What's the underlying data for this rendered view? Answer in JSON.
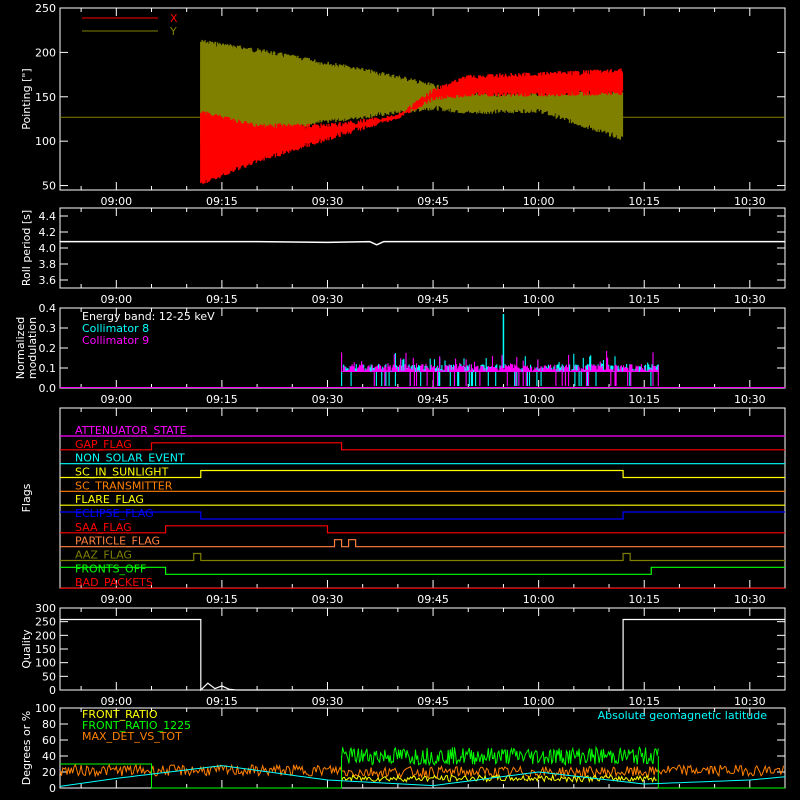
{
  "time_ticks": [
    "09:00",
    "09:15",
    "09:30",
    "09:45",
    "10:00",
    "10:15",
    "10:30"
  ],
  "chart_data": [
    {
      "type": "line",
      "ylabel": "Pointing [\"]",
      "yticks": [
        "50",
        "100",
        "150",
        "200",
        "250"
      ],
      "ylim": [
        45,
        250
      ],
      "xlim": [
        "08:52",
        "10:35"
      ],
      "legend": [
        {
          "name": "X",
          "color": "#ff0000"
        },
        {
          "name": "Y",
          "color": "#808000"
        }
      ],
      "series": [
        {
          "name": "X",
          "color": "#ff0000",
          "baseline": 127,
          "active_from": "09:12",
          "active_to": "10:12",
          "envelope_x": [
            "09:12",
            "09:20",
            "09:30",
            "09:40",
            "09:45",
            "09:50",
            "10:00",
            "10:12"
          ],
          "envelope_low": [
            50,
            75,
            100,
            125,
            145,
            150,
            150,
            152
          ],
          "envelope_high": [
            135,
            120,
            120,
            130,
            160,
            175,
            178,
            182
          ]
        },
        {
          "name": "Y",
          "color": "#808000",
          "baseline": 127,
          "active_from": "09:12",
          "active_to": "10:12",
          "envelope_x": [
            "09:12",
            "09:20",
            "09:30",
            "09:40",
            "09:45",
            "09:50",
            "10:00",
            "10:12"
          ],
          "envelope_low": [
            95,
            105,
            120,
            130,
            135,
            130,
            132,
            100
          ],
          "envelope_high": [
            215,
            205,
            190,
            175,
            165,
            155,
            155,
            160
          ]
        }
      ]
    },
    {
      "type": "line",
      "ylabel": "Roll period [s]",
      "yticks": [
        "3.6",
        "3.8",
        "4.0",
        "4.2",
        "4.4"
      ],
      "ylim": [
        3.5,
        4.5
      ],
      "series": [
        {
          "name": "roll",
          "color": "#ffffff",
          "x": [
            "08:52",
            "09:20",
            "09:30",
            "09:36",
            "09:37",
            "09:38",
            "09:45",
            "10:00",
            "10:35"
          ],
          "y": [
            4.08,
            4.08,
            4.07,
            4.08,
            4.04,
            4.08,
            4.08,
            4.08,
            4.08
          ]
        }
      ]
    },
    {
      "type": "bar",
      "ylabel": "Normalized modulation",
      "yticks": [
        "0.0",
        "0.1",
        "0.2",
        "0.3",
        "0.4"
      ],
      "ylim": [
        0,
        0.4
      ],
      "legend": [
        {
          "name": "Energy band: 12-25 keV",
          "color": "#ffffff"
        },
        {
          "name": "Collimator 8",
          "color": "#00ffff"
        },
        {
          "name": "Collimator 9",
          "color": "#ff00ff"
        }
      ],
      "active_from": "09:32",
      "active_to": "10:17",
      "typical": 0.1,
      "spike": {
        "x": "09:55",
        "y": 0.37
      }
    },
    {
      "type": "line",
      "ylabel": "Flags",
      "flags": [
        {
          "name": "ATTENUATOR_STATE",
          "color": "#ff00ff",
          "steps": [
            [
              "08:52",
              0
            ]
          ]
        },
        {
          "name": "GAP_FLAG",
          "color": "#ff0000",
          "steps": [
            [
              "08:52",
              0
            ],
            [
              "09:05",
              1
            ],
            [
              "09:32",
              0
            ]
          ]
        },
        {
          "name": "NON_SOLAR_EVENT",
          "color": "#00ffff",
          "steps": [
            [
              "08:52",
              0
            ]
          ]
        },
        {
          "name": "SC_IN_SUNLIGHT",
          "color": "#ffff00",
          "steps": [
            [
              "08:52",
              0
            ],
            [
              "09:12",
              1
            ],
            [
              "10:12",
              0
            ]
          ]
        },
        {
          "name": "SC_TRANSMITTER",
          "color": "#ff8000",
          "steps": [
            [
              "08:52",
              0
            ]
          ]
        },
        {
          "name": "FLARE_FLAG",
          "color": "#ffff00",
          "steps": [
            [
              "08:52",
              0
            ]
          ]
        },
        {
          "name": "ECLIPSE_FLAG",
          "color": "#0000ff",
          "steps": [
            [
              "08:52",
              1
            ],
            [
              "09:12",
              0
            ],
            [
              "10:12",
              1
            ]
          ]
        },
        {
          "name": "SAA_FLAG",
          "color": "#ff0000",
          "steps": [
            [
              "08:52",
              0
            ],
            [
              "09:07",
              1
            ],
            [
              "09:30",
              0
            ]
          ]
        },
        {
          "name": "PARTICLE_FLAG",
          "color": "#ff8040",
          "steps": [
            [
              "08:52",
              0
            ],
            [
              "09:31",
              1
            ],
            [
              "09:32",
              0
            ],
            [
              "09:33",
              1
            ],
            [
              "09:34",
              0
            ]
          ]
        },
        {
          "name": "AAZ_FLAG",
          "color": "#808000",
          "steps": [
            [
              "08:52",
              0
            ],
            [
              "09:11",
              1
            ],
            [
              "09:12",
              0
            ],
            [
              "10:12",
              1
            ],
            [
              "10:13",
              0
            ]
          ]
        },
        {
          "name": "FRONTS_OFF",
          "color": "#00ff00",
          "steps": [
            [
              "08:52",
              1
            ],
            [
              "09:07",
              0
            ],
            [
              "10:16",
              1
            ]
          ]
        },
        {
          "name": "BAD_PACKETS",
          "color": "#ff0000",
          "steps": [
            [
              "08:52",
              0
            ]
          ]
        }
      ]
    },
    {
      "type": "line",
      "ylabel": "Quality",
      "yticks": [
        "0",
        "50",
        "100",
        "150",
        "200",
        "250",
        "300"
      ],
      "ylim": [
        0,
        300
      ],
      "series": [
        {
          "name": "quality",
          "color": "#ffffff",
          "x": [
            "08:52",
            "09:12",
            "09:12",
            "09:13",
            "09:14",
            "09:15",
            "09:16",
            "09:17",
            "10:12",
            "10:12",
            "10:35"
          ],
          "y": [
            258,
            258,
            0,
            25,
            5,
            15,
            3,
            0,
            0,
            258,
            258
          ]
        }
      ]
    },
    {
      "type": "line",
      "ylabel": "Degrees or %",
      "yticks": [
        "0",
        "20",
        "40",
        "60",
        "80",
        "100"
      ],
      "ylim": [
        0,
        100
      ],
      "legend": [
        {
          "name": "FRONT_RATIO",
          "color": "#ffff00"
        },
        {
          "name": "FRONT_RATIO_1225",
          "color": "#00ff00"
        },
        {
          "name": "MAX_DET_VS_TOT",
          "color": "#ff8000"
        }
      ],
      "annotation": {
        "text": "Absolute geomagnetic latitude",
        "color": "#00ffff"
      },
      "latitude": {
        "x": [
          "08:52",
          "09:00",
          "09:15",
          "09:30",
          "09:45",
          "10:00",
          "10:15",
          "10:30",
          "10:35"
        ],
        "y": [
          2,
          12,
          28,
          10,
          3,
          20,
          5,
          10,
          14
        ]
      },
      "front_ratio_level": {
        "x": [
          "09:32",
          "10:17"
        ],
        "y": [
          12,
          12
        ]
      },
      "front_ratio_1225_level": {
        "x": [
          "09:32",
          "10:17"
        ],
        "y": [
          40,
          40
        ]
      },
      "max_det_level": {
        "x": [
          "08:52",
          "10:35"
        ],
        "y": [
          22,
          22
        ]
      },
      "active_from": "09:32",
      "active_to": "10:17"
    }
  ]
}
